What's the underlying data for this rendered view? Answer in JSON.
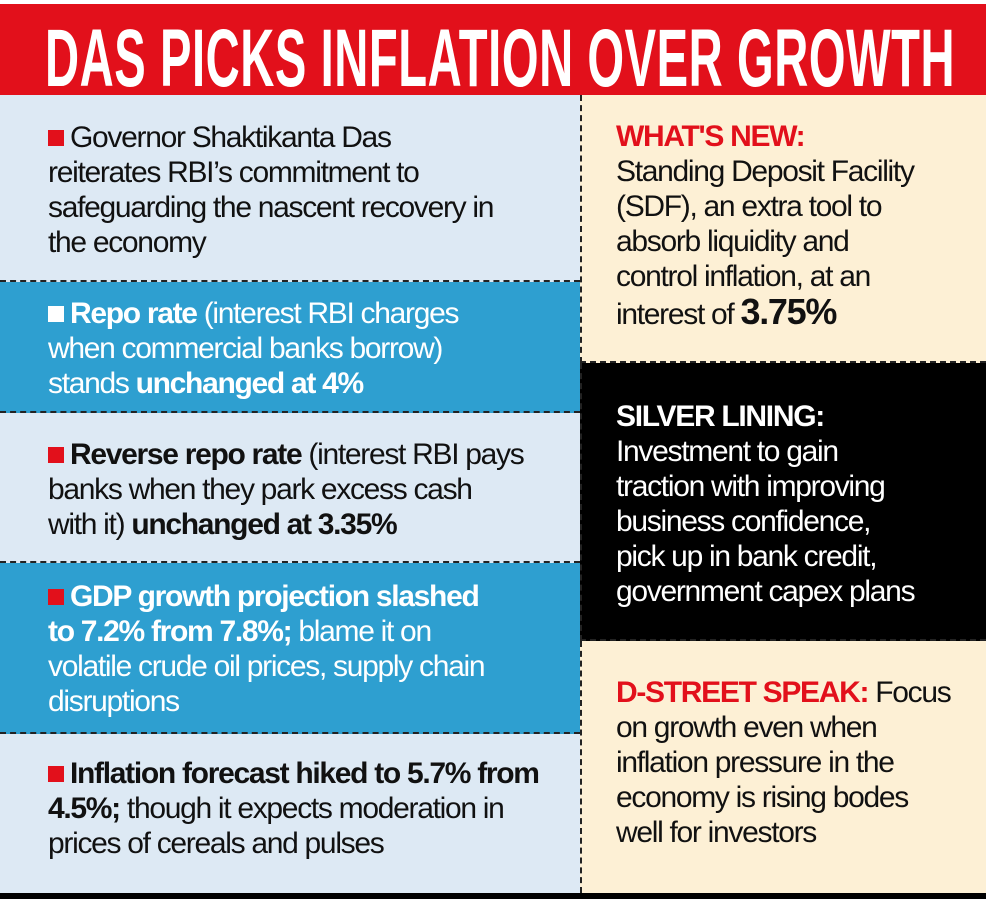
{
  "title": "DAS PICKS INFLATION OVER GROWTH",
  "colors": {
    "red": "#e2101b",
    "light_blue": "#dde9f4",
    "blue": "#2e9fd0",
    "cream": "#fdf0d5",
    "black": "#000000"
  },
  "left": {
    "b1": {
      "l1": "Governor Shaktikanta Das",
      "l2": "reiterates RBI’s commitment to",
      "l3": "safeguarding the nascent recovery in",
      "l4": "the economy"
    },
    "b2": {
      "lead": "Repo rate",
      "l1": " (interest RBI charges",
      "l2": "when commercial banks borrow)",
      "l3a": "stands ",
      "l3b": "unchanged at 4%"
    },
    "b3": {
      "lead": "Reverse repo rate",
      "l1": " (interest RBI pays",
      "l2": "banks when they park excess cash",
      "l3a": "with it) ",
      "l3b": "unchanged at 3.35%"
    },
    "b4": {
      "lead": "GDP growth projection slashed",
      "l2a": "to 7.2% from 7.8%;",
      "l2b": " blame it on",
      "l3": "volatile crude oil prices, supply chain",
      "l4": "disruptions"
    },
    "b5": {
      "lead": "Inflation forecast hiked to 5.7% from",
      "l2a": "4.5%;",
      "l2b": "  though it expects moderation in",
      "l3": "prices of cereals and pulses"
    }
  },
  "right": {
    "new": {
      "label": "WHAT'S NEW:",
      "l1": "Standing Deposit Facility",
      "l2": "(SDF), an extra tool to",
      "l3": "absorb liquidity and",
      "l4": "control inflation, at an",
      "l5": "interest of ",
      "value": "3.75%"
    },
    "silver": {
      "label": "SILVER LINING:",
      "l1": "Investment to gain",
      "l2": "traction with improving",
      "l3": "business confidence,",
      "l4": "pick up in bank credit,",
      "l5": "government capex plans"
    },
    "dstreet": {
      "label": "D-STREET SPEAK:",
      "l1": " Focus",
      "l2": "on growth even when",
      "l3": "inflation pressure in the",
      "l4": "economy is rising bodes",
      "l5": "well for investors"
    }
  }
}
